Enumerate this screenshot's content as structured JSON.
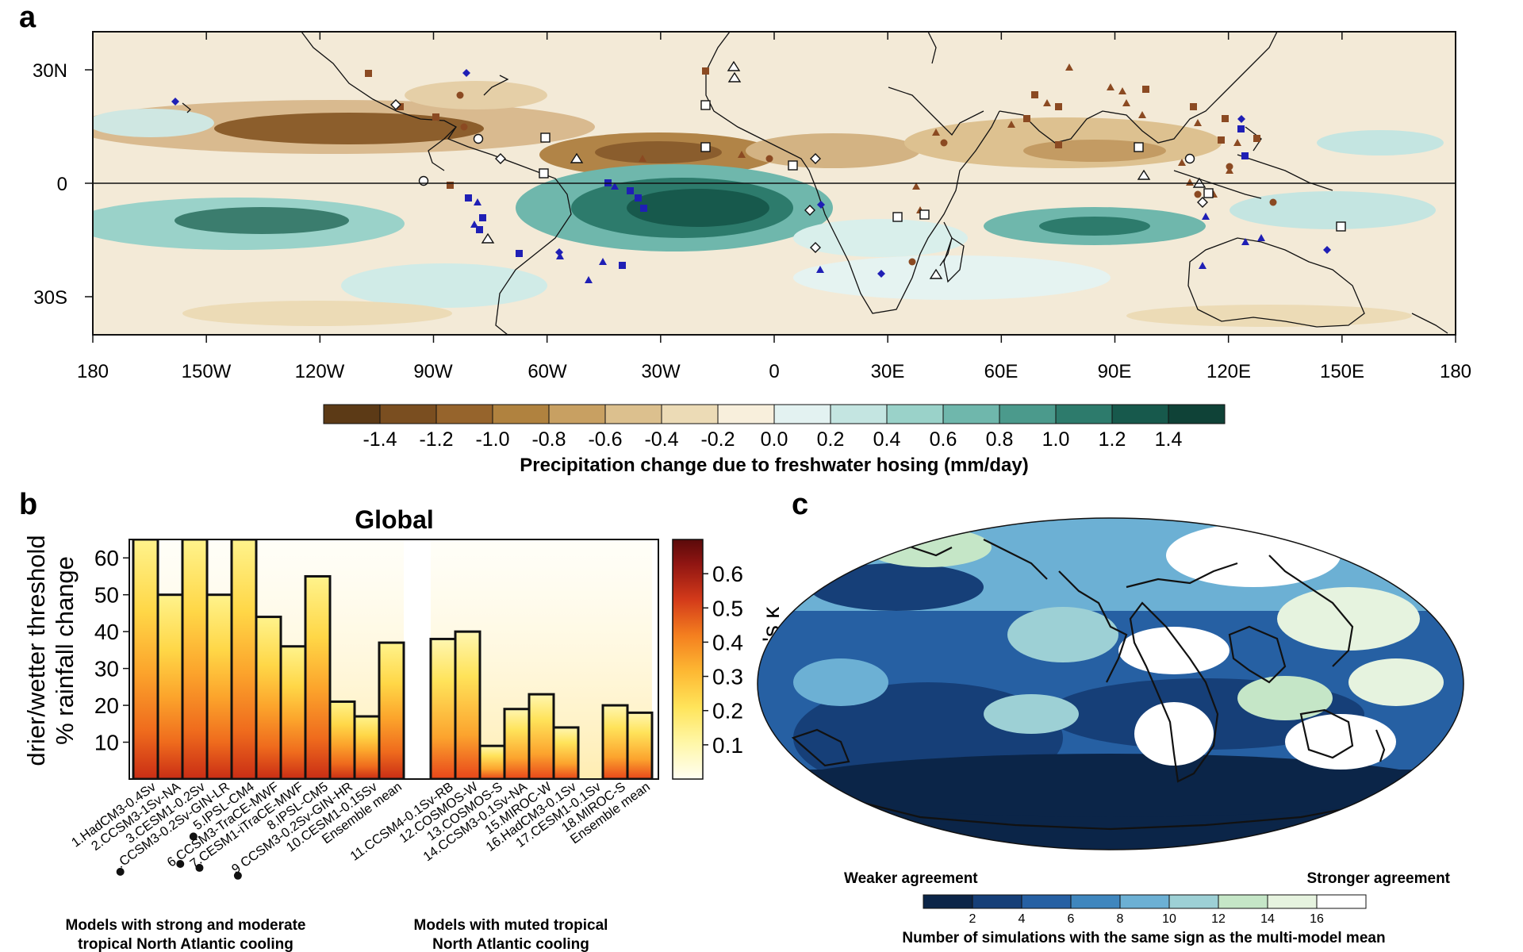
{
  "panel_a": {
    "label": "a",
    "lat_ticks": [
      "30N",
      "0",
      "30S"
    ],
    "lon_ticks": [
      "180",
      "150W",
      "120W",
      "90W",
      "60W",
      "30W",
      "0",
      "30E",
      "60E",
      "90E",
      "120E",
      "150E",
      "180"
    ],
    "colorbar": {
      "ticks": [
        "-1.4",
        "-1.2",
        "-1.0",
        "-0.8",
        "-0.6",
        "-0.4",
        "-0.2",
        "0.0",
        "0.2",
        "0.4",
        "0.6",
        "0.8",
        "1.0",
        "1.2",
        "1.4"
      ],
      "colors": [
        "#5c3a16",
        "#7a4e20",
        "#96642c",
        "#b0823f",
        "#c8a062",
        "#dcc08e",
        "#ecdbb6",
        "#f8efdc",
        "#e3f2f1",
        "#c4e5e1",
        "#9ad2c9",
        "#6fb7ac",
        "#4b9a8c",
        "#2d7b6c",
        "#17594c",
        "#0f4237"
      ],
      "label": "Precipitation change due to freshwater hosing (mm/day)"
    }
  },
  "chart_data": [
    {
      "type": "bar",
      "title": "Global",
      "panel": "b",
      "ylabel_line1": "drier/wetter threshold",
      "ylabel_line2": "% rainfall change",
      "yticks": [
        "10",
        "20",
        "30",
        "40",
        "50",
        "60"
      ],
      "ylim": [
        0,
        65
      ],
      "categories": [
        "1.HadCM3-0.4Sv",
        "2.CCSM3-1Sv-NA",
        "3.CESM1-0.2Sv",
        "4.CCSM3-0.2Sv-GIN-LR",
        "5.IPSL-CM4",
        "6.CCSM3-TraCE-MWF",
        "7.CESM1-iTraCE-MWF",
        "8.IPSL-CM5",
        "9 CCSM3-0.2Sv-GIN-HR",
        "10.CESM1-0.15Sv",
        "Ensemble mean",
        "11.CCSM4-0.1Sv-RB",
        "12.COSMOS-W",
        "13.COSMOS-S",
        "14.CCSM3-0.1Sv-NA",
        "15.MIROC-W",
        "16.HadCM3-0.1Sv",
        "17.CESM1-0.1Sv",
        "18.MIROC-S",
        "Ensemble mean"
      ],
      "tick_labels": [
        "1.HadCM3-0.4Sv",
        "2.CCSM3-1Sv-NA",
        "3.CESM1-0.2Sv",
        ".CCSM3-0.2Sv-GIN-LR",
        "5.IPSL-CM4",
        "6.CCSM3-TraCE-MWF",
        "7.CESM1-iTraCE-MWF",
        "8.IPSL-CM5",
        "9 CCSM3-0.2Sv-GIN-HR",
        "10.CESM1-0.15Sv",
        "Ensemble mean",
        "11.CCSM4-0.1Sv-RB",
        "12.COSMOS-W",
        "13.COSMOS-S",
        "14.CCSM3-0.1Sv-NA",
        "15.MIROC-W",
        "16.HadCM3-0.1Sv",
        "17.CESM1-0.1Sv",
        "18.MIROC-S",
        "Ensemble mean"
      ],
      "dotted_categories": [
        3,
        4,
        5,
        6,
        8
      ],
      "values": [
        65,
        50,
        65,
        50,
        65,
        44,
        36,
        55,
        21,
        17,
        37,
        38,
        40,
        9,
        19,
        23,
        14,
        0,
        20,
        18
      ],
      "groups": [
        {
          "label_line1": "Models with strong and moderate",
          "label_line2": "tropical North Atlantic cooling"
        },
        {
          "label_line1": "Models with muted tropical",
          "label_line2": "North Atlantic cooling"
        }
      ],
      "colorbar": {
        "label": "Cohen's κ",
        "ticks": [
          "0.1",
          "0.2",
          "0.3",
          "0.4",
          "0.5",
          "0.6"
        ],
        "range": [
          0,
          0.7
        ]
      }
    },
    {
      "type": "heatmap",
      "panel": "c",
      "left_label": "Weaker agreement",
      "right_label": "Stronger agreement",
      "colorbar_ticks": [
        "2",
        "4",
        "6",
        "8",
        "10",
        "12",
        "14",
        "16"
      ],
      "colorbar_colors": [
        "#0b2548",
        "#163f78",
        "#2660a3",
        "#3f86be",
        "#6cb0d4",
        "#9dd0d5",
        "#c5e6c7",
        "#e6f3df",
        "#ffffff"
      ],
      "colorbar_label": "Number of simulations with the same sign as the multi-model mean"
    }
  ],
  "panel_b_label": "b",
  "panel_c_label": "c"
}
